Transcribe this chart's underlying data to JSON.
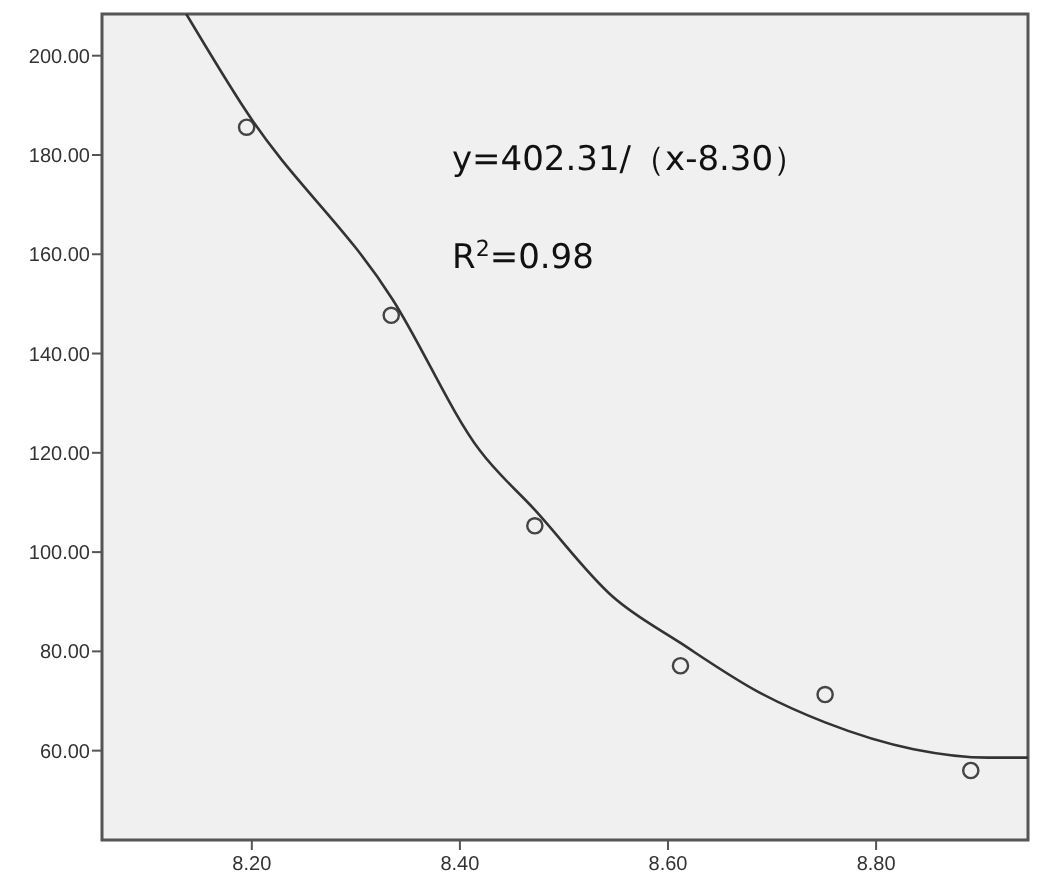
{
  "chart_data": {
    "type": "scatter",
    "xlim": [
      8.056,
      8.946
    ],
    "xticks": [
      {
        "value": 8.2,
        "label": "8.20"
      },
      {
        "value": 8.4,
        "label": "8.40"
      },
      {
        "value": 8.6,
        "label": "8.60"
      },
      {
        "value": 8.8,
        "label": "8.80"
      }
    ],
    "ylim": [
      42,
      208.4
    ],
    "yticks": [
      {
        "value": 60,
        "label": "60.00"
      },
      {
        "value": 80,
        "label": "80.00"
      },
      {
        "value": 100,
        "label": "100.00"
      },
      {
        "value": 120,
        "label": "120.00"
      },
      {
        "value": 140,
        "label": "140.00"
      },
      {
        "value": 160,
        "label": "160.00"
      },
      {
        "value": 180,
        "label": "180.00"
      },
      {
        "value": 200,
        "label": "200.00"
      }
    ],
    "grid": false,
    "series": [
      {
        "color": "#444444",
        "marker": "circle",
        "x": [
          8.195,
          8.334,
          8.472,
          8.612,
          8.751,
          8.891
        ],
        "values": [
          185.6,
          147.7,
          105.3,
          77.1,
          71.3,
          56
        ]
      },
      {
        "type": "line",
        "color": "#333333",
        "marker": "none",
        "line_style": "solid",
        "x": [
          8.137,
          8.194,
          8.335,
          8.419,
          8.472,
          8.547,
          8.612,
          8.688,
          8.751,
          8.836,
          8.908,
          8.946
        ],
        "values": [
          208.4,
          189,
          151,
          120.5,
          108.5,
          91,
          81.7,
          71.7,
          65.7,
          60.3,
          58.6,
          58.6
        ]
      }
    ],
    "annotations": [
      "y=402.31/（x-8.30）",
      "R$^{2}$=0.98"
    ]
  }
}
